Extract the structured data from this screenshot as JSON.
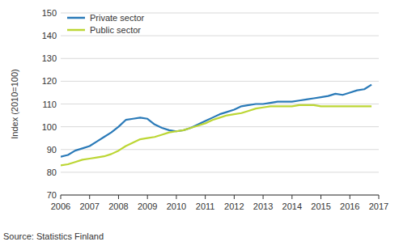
{
  "chart_data": {
    "type": "line",
    "y_label": "Index (2010=100)",
    "source": "Source: Statistics Finland",
    "x": [
      2006,
      2006.25,
      2006.5,
      2006.75,
      2007,
      2007.25,
      2007.5,
      2007.75,
      2008,
      2008.25,
      2008.5,
      2008.75,
      2009,
      2009.25,
      2009.5,
      2009.75,
      2010,
      2010.25,
      2010.5,
      2010.75,
      2011,
      2011.25,
      2011.5,
      2011.75,
      2012,
      2012.25,
      2012.5,
      2012.75,
      2013,
      2013.25,
      2013.5,
      2013.75,
      2014,
      2014.25,
      2014.5,
      2014.75,
      2015,
      2015.25,
      2015.5,
      2015.75,
      2016,
      2016.25,
      2016.5,
      2016.75
    ],
    "series": [
      {
        "name": "Private sector",
        "color": "#2a7ab8",
        "values": [
          86.8,
          87.6,
          89.5,
          90.5,
          91.5,
          93.5,
          95.5,
          97.5,
          100,
          103,
          103.5,
          104,
          103.5,
          101,
          99.5,
          98.5,
          98,
          98.5,
          99.5,
          101,
          102.5,
          104,
          105.5,
          106.5,
          107.5,
          109,
          109.5,
          110,
          110,
          110.5,
          111,
          111,
          111,
          111.5,
          112,
          112.5,
          113,
          113.5,
          114.5,
          114,
          115,
          116,
          116.5,
          118.5
        ]
      },
      {
        "name": "Public sector",
        "color": "#bcd634",
        "values": [
          83,
          83.5,
          84.5,
          85.5,
          86,
          86.5,
          87,
          88,
          89.5,
          91.5,
          93,
          94.5,
          95,
          95.5,
          96.5,
          97.5,
          98,
          98.5,
          99.5,
          100.5,
          101.5,
          103,
          104,
          105,
          105.5,
          106,
          107,
          108,
          108.5,
          109,
          109,
          109,
          109,
          109.5,
          109.5,
          109.5,
          109,
          109,
          109,
          109,
          109,
          109,
          109,
          109
        ]
      }
    ],
    "xlim": [
      2006,
      2017
    ],
    "xticks": [
      2006,
      2007,
      2008,
      2009,
      2010,
      2011,
      2012,
      2013,
      2014,
      2015,
      2016,
      2017
    ],
    "ylim": [
      70,
      150
    ],
    "yticks": [
      70,
      80,
      90,
      100,
      110,
      120,
      130,
      140,
      150
    ],
    "grid": true,
    "legend": "upper left"
  }
}
